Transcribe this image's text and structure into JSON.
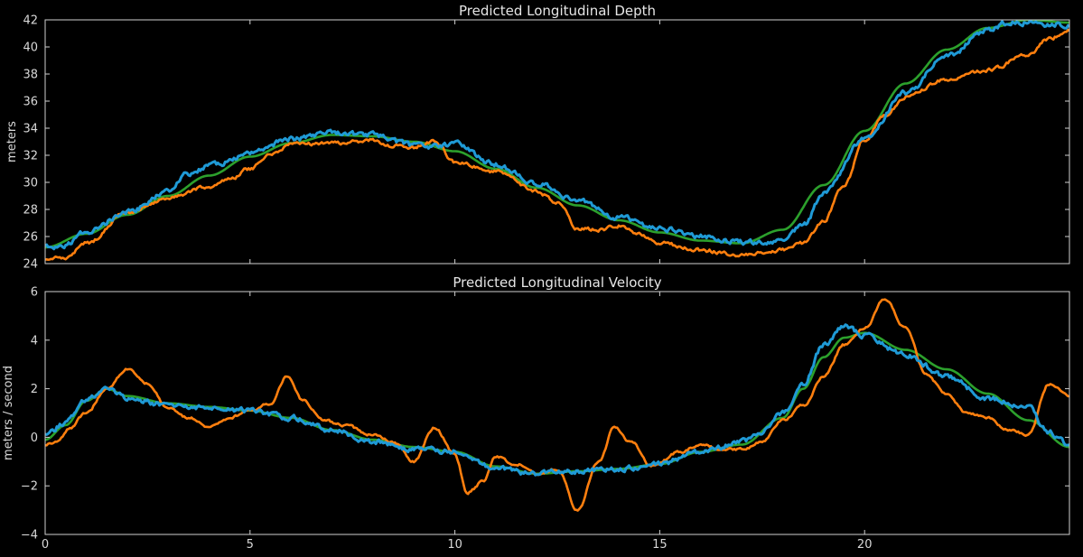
{
  "chart_data": [
    {
      "type": "line",
      "title": "Predicted Longitudinal Depth",
      "xlabel": "",
      "ylabel": "meters",
      "xlim": [
        0,
        25
      ],
      "ylim": [
        24,
        42
      ],
      "xticks": [
        0,
        5,
        10,
        15,
        20
      ],
      "xtick_labels": [
        "",
        "",
        "",
        "",
        ""
      ],
      "yticks": [
        24,
        26,
        28,
        30,
        32,
        34,
        36,
        38,
        40,
        42
      ],
      "ytick_labels": [
        "24",
        "26",
        "28",
        "30",
        "32",
        "34",
        "36",
        "38",
        "40",
        "42"
      ],
      "series": [
        {
          "name": "green",
          "color": "#2ca02c",
          "noise": 0,
          "x": [
            0,
            1,
            2,
            3,
            4,
            5,
            6,
            7,
            8,
            9,
            10,
            11,
            12,
            13,
            14,
            15,
            16,
            17,
            18,
            19,
            20,
            21,
            22,
            23,
            24,
            25
          ],
          "y": [
            25.2,
            26.2,
            27.6,
            29.0,
            30.5,
            31.9,
            32.9,
            33.5,
            33.4,
            33.0,
            32.3,
            31.0,
            29.6,
            28.3,
            27.2,
            26.3,
            25.7,
            25.5,
            26.5,
            29.8,
            33.8,
            37.3,
            39.8,
            41.4,
            42.0,
            41.8
          ]
        },
        {
          "name": "orange",
          "color": "#ff7f0e",
          "noise": 0.25,
          "x": [
            0,
            0.5,
            1,
            2,
            3,
            4,
            4.5,
            5,
            5.5,
            6,
            7,
            8,
            8.5,
            9,
            9.5,
            10,
            11,
            12,
            12.5,
            13,
            13.5,
            14,
            14.5,
            15,
            16,
            17,
            17.5,
            18,
            18.5,
            19,
            19.5,
            20,
            20.5,
            21,
            22,
            23,
            24,
            24.5,
            25
          ],
          "y": [
            24.4,
            24.5,
            25.5,
            27.8,
            28.8,
            29.7,
            30.2,
            31.0,
            32.0,
            32.8,
            32.9,
            33.1,
            32.7,
            32.6,
            33.0,
            31.5,
            30.8,
            29.3,
            28.5,
            26.6,
            26.5,
            26.8,
            26.2,
            25.5,
            25.0,
            24.6,
            24.8,
            25.0,
            25.5,
            27.2,
            29.8,
            33.2,
            35.0,
            36.3,
            37.6,
            38.3,
            39.4,
            40.6,
            41.2
          ]
        },
        {
          "name": "blue",
          "color": "#1f9ad6",
          "noise": 0.35,
          "x": [
            0,
            0.5,
            1,
            2,
            3,
            3.5,
            4,
            5,
            6,
            7,
            8,
            9,
            9.5,
            10,
            11,
            12,
            13,
            14,
            15,
            16,
            17,
            17.5,
            18,
            18.5,
            19,
            20,
            21,
            22,
            23,
            23.5,
            24,
            24.5,
            25
          ],
          "y": [
            25.2,
            25.4,
            26.3,
            27.8,
            29.3,
            30.6,
            31.2,
            32.1,
            33.2,
            33.7,
            33.5,
            32.7,
            32.6,
            32.8,
            31.3,
            29.9,
            28.7,
            27.4,
            26.6,
            26.0,
            25.6,
            25.5,
            25.8,
            26.8,
            29.2,
            33.2,
            36.6,
            39.3,
            41.2,
            41.8,
            41.8,
            41.7,
            41.6
          ]
        }
      ]
    },
    {
      "type": "line",
      "title": "Predicted Longitudinal Velocity",
      "xlabel": "",
      "ylabel": "meters / second",
      "xlim": [
        0,
        25
      ],
      "ylim": [
        -4,
        6
      ],
      "xticks": [
        0,
        5,
        10,
        15,
        20
      ],
      "xtick_labels": [
        "0",
        "5",
        "10",
        "15",
        "20"
      ],
      "yticks": [
        -4,
        -2,
        0,
        2,
        4,
        6
      ],
      "ytick_labels": [
        "−4",
        "−2",
        "0",
        "2",
        "4",
        "6"
      ],
      "series": [
        {
          "name": "green",
          "color": "#2ca02c",
          "noise": 0,
          "x": [
            0,
            0.5,
            1,
            1.5,
            2,
            3,
            4,
            5,
            6,
            7,
            8,
            9,
            10,
            11,
            12,
            13,
            14,
            15,
            16,
            17,
            18,
            18.5,
            19,
            19.5,
            20,
            21,
            22,
            23,
            24,
            25
          ],
          "y": [
            -0.1,
            0.5,
            1.5,
            2.0,
            1.7,
            1.4,
            1.25,
            1.1,
            0.8,
            0.3,
            -0.1,
            -0.4,
            -0.6,
            -1.2,
            -1.5,
            -1.4,
            -1.3,
            -1.1,
            -0.6,
            -0.3,
            0.8,
            2.0,
            3.3,
            4.1,
            4.3,
            3.6,
            2.8,
            1.8,
            0.7,
            -0.4
          ]
        },
        {
          "name": "orange",
          "color": "#ff7f0e",
          "noise": 0.1,
          "x": [
            0,
            0.3,
            0.6,
            1,
            1.5,
            2,
            2.5,
            3,
            3.5,
            4,
            4.5,
            5,
            5.5,
            5.9,
            6.3,
            6.8,
            7.3,
            8,
            8.5,
            9,
            9.5,
            10,
            10.3,
            10.7,
            11,
            11.5,
            12,
            12.5,
            13,
            13.5,
            13.9,
            14.3,
            14.8,
            15.5,
            16,
            16.5,
            17,
            17.5,
            18,
            18.5,
            19,
            19.5,
            20,
            20.5,
            21,
            21.5,
            22,
            22.5,
            23,
            23.5,
            24,
            24.5,
            25
          ],
          "y": [
            -0.3,
            -0.2,
            0.4,
            1.0,
            2.0,
            2.8,
            2.2,
            1.2,
            0.8,
            0.4,
            0.8,
            1.1,
            1.4,
            2.5,
            1.5,
            0.7,
            0.5,
            0.1,
            -0.2,
            -1.0,
            0.4,
            -0.7,
            -2.3,
            -1.8,
            -0.8,
            -1.1,
            -1.5,
            -1.3,
            -3.0,
            -1.0,
            0.4,
            -0.2,
            -1.2,
            -0.6,
            -0.3,
            -0.5,
            -0.5,
            -0.2,
            0.7,
            1.3,
            2.5,
            3.8,
            4.5,
            5.7,
            4.5,
            2.6,
            1.8,
            1.0,
            0.8,
            0.3,
            0.1,
            2.2,
            1.7
          ]
        },
        {
          "name": "blue",
          "color": "#1f9ad6",
          "noise": 0.2,
          "x": [
            0,
            0.5,
            1,
            1.5,
            2,
            3,
            4,
            5,
            6,
            7,
            8,
            9,
            10,
            11,
            12,
            13,
            14,
            15,
            16,
            17,
            17.5,
            18,
            18.5,
            19,
            19.5,
            20,
            21,
            22,
            23,
            24,
            24.5,
            25
          ],
          "y": [
            0.1,
            0.6,
            1.6,
            2.0,
            1.6,
            1.3,
            1.2,
            1.1,
            0.8,
            0.3,
            -0.2,
            -0.5,
            -0.6,
            -1.3,
            -1.5,
            -1.4,
            -1.3,
            -1.1,
            -0.6,
            -0.2,
            0.2,
            1.0,
            2.2,
            3.8,
            4.6,
            4.2,
            3.4,
            2.5,
            1.6,
            1.2,
            0.2,
            -0.3
          ]
        }
      ]
    }
  ]
}
